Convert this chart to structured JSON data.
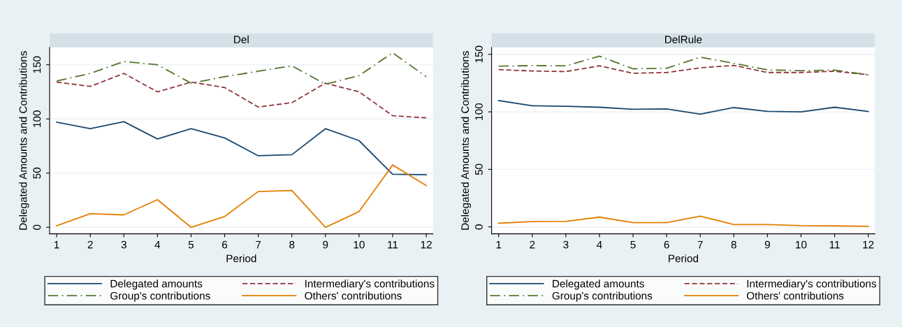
{
  "chart_data": [
    {
      "type": "line",
      "title": "Del",
      "xlabel": "Period",
      "ylabel": "Delegated Amounts and Contributions",
      "x": [
        1,
        2,
        3,
        4,
        5,
        6,
        7,
        8,
        9,
        10,
        11,
        12
      ],
      "xlim": [
        0.79,
        12.2
      ],
      "xticks": [
        1,
        2,
        3,
        4,
        5,
        6,
        7,
        8,
        9,
        10,
        11,
        12
      ],
      "ylim": [
        -6,
        166
      ],
      "yticks": [
        0,
        50,
        100,
        150
      ],
      "grid": "y",
      "legend": "bottom",
      "marker": "none",
      "series": [
        {
          "name": "Delegated amounts",
          "color": "#1a476f",
          "line_style": "solid",
          "values": [
            97,
            91,
            97.5,
            81.5,
            91,
            82.5,
            66,
            67,
            91,
            80,
            49,
            48.5
          ]
        },
        {
          "name": "Intermediary's contributions",
          "color": "#90353b",
          "line_style": "dashed",
          "values": [
            134,
            130,
            142,
            125,
            134,
            129,
            111,
            115,
            133,
            125,
            103,
            101
          ]
        },
        {
          "name": "Group's contributions",
          "color": "#55752f",
          "line_style": "dashdot",
          "values": [
            135,
            142,
            153,
            150,
            133,
            139,
            144,
            149,
            132,
            140,
            161,
            139
          ]
        },
        {
          "name": "Others' contributions",
          "color": "#e37e00",
          "line_style": "solid",
          "values": [
            1.5,
            12.5,
            11.5,
            25.5,
            0,
            10,
            33,
            34,
            0,
            14.5,
            57.5,
            38.5
          ]
        }
      ]
    },
    {
      "type": "line",
      "title": "DelRule",
      "xlabel": "Period",
      "ylabel": "Delegated Amounts and Contributions",
      "x": [
        1,
        2,
        3,
        4,
        5,
        6,
        7,
        8,
        9,
        10,
        11,
        12
      ],
      "xlim": [
        0.79,
        12.2
      ],
      "xticks": [
        1,
        2,
        3,
        4,
        5,
        6,
        7,
        8,
        9,
        10,
        11,
        12
      ],
      "ylim": [
        -6,
        156
      ],
      "yticks": [
        0,
        50,
        100,
        150
      ],
      "grid": "y",
      "legend": "bottom",
      "marker": "none",
      "series": [
        {
          "name": "Delegated amounts",
          "color": "#1a476f",
          "line_style": "solid",
          "values": [
            109.8,
            105.3,
            104.8,
            104,
            102.3,
            102.5,
            98,
            103.7,
            100.4,
            100,
            104,
            100.4
          ]
        },
        {
          "name": "Intermediary's contributions",
          "color": "#90353b",
          "line_style": "dashed",
          "values": [
            136.7,
            135.5,
            135,
            140,
            133.5,
            134.2,
            138.3,
            140.4,
            134.2,
            134.2,
            135.3,
            132.2
          ]
        },
        {
          "name": "Group's contributions",
          "color": "#55752f",
          "line_style": "dashdot",
          "values": [
            139.7,
            140.2,
            140,
            148.4,
            137.4,
            137.9,
            147.5,
            142.2,
            136.5,
            135.8,
            136.3,
            132.2
          ]
        },
        {
          "name": "Others' contributions",
          "color": "#e37e00",
          "line_style": "solid",
          "values": [
            3.2,
            4.6,
            4.8,
            8.5,
            3.7,
            3.7,
            9.4,
            2,
            2,
            1.1,
            0.9,
            0.5
          ]
        }
      ]
    }
  ]
}
